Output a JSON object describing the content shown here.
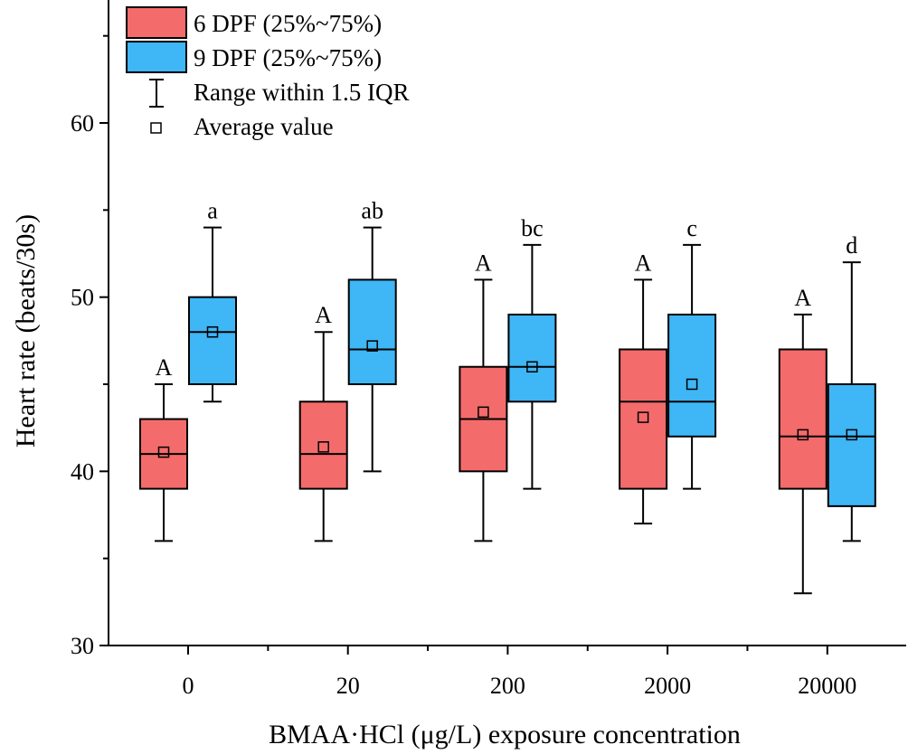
{
  "chart_data": {
    "type": "box",
    "xlabel": "BMAA·HCl (μg/L) exposure concentration",
    "ylabel": "Heart rate (beats/30s)",
    "ylim": [
      30,
      68
    ],
    "yticks": [
      30,
      40,
      50,
      60
    ],
    "categories": [
      "0",
      "20",
      "200",
      "2000",
      "20000"
    ],
    "series": [
      {
        "name": "6 DPF (25%~75%)",
        "color": "#F46B6B",
        "boxes": [
          {
            "min": 36,
            "q1": 39,
            "median": 41,
            "q3": 43,
            "max": 45,
            "mean": 41.1,
            "label": "A"
          },
          {
            "min": 36,
            "q1": 39,
            "median": 41,
            "q3": 44,
            "max": 48,
            "mean": 41.4,
            "label": "A"
          },
          {
            "min": 36,
            "q1": 40,
            "median": 43,
            "q3": 46,
            "max": 51,
            "mean": 43.4,
            "label": "A"
          },
          {
            "min": 37,
            "q1": 39,
            "median": 44,
            "q3": 47,
            "max": 51,
            "mean": 43.1,
            "label": "A"
          },
          {
            "min": 33,
            "q1": 39,
            "median": 42,
            "q3": 47,
            "max": 49,
            "mean": 42.1,
            "label": "A"
          }
        ]
      },
      {
        "name": "9 DPF (25%~75%)",
        "color": "#3FB6F5",
        "boxes": [
          {
            "min": 44,
            "q1": 45,
            "median": 48,
            "q3": 50,
            "max": 54,
            "mean": 48.0,
            "label": "a"
          },
          {
            "min": 40,
            "q1": 45,
            "median": 47,
            "q3": 51,
            "max": 54,
            "mean": 47.2,
            "label": "ab"
          },
          {
            "min": 39,
            "q1": 44,
            "median": 46,
            "q3": 49,
            "max": 53,
            "mean": 46.0,
            "label": "bc"
          },
          {
            "min": 39,
            "q1": 42,
            "median": 44,
            "q3": 49,
            "max": 53,
            "mean": 45.0,
            "label": "c"
          },
          {
            "min": 36,
            "q1": 38,
            "median": 42,
            "q3": 45,
            "max": 52,
            "mean": 42.1,
            "label": "d"
          }
        ]
      }
    ],
    "legend": {
      "position": "top-left",
      "entries": [
        {
          "label": "6 DPF (25%~75%)",
          "kind": "box",
          "color": "#F46B6B"
        },
        {
          "label": "9 DPF (25%~75%)",
          "kind": "box",
          "color": "#3FB6F5"
        },
        {
          "label": "Range within 1.5 IQR",
          "kind": "whisker"
        },
        {
          "label": "Average value",
          "kind": "mean"
        }
      ]
    }
  }
}
